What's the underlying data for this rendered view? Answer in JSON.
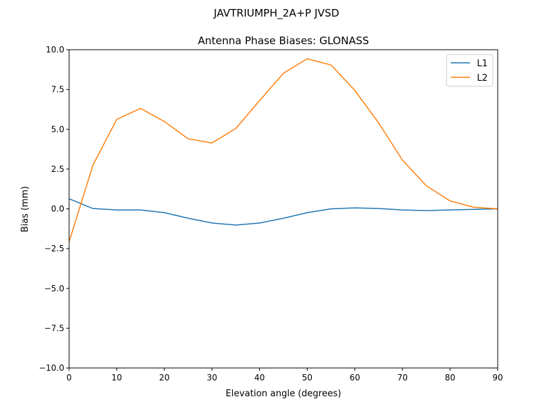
{
  "chart_data": {
    "type": "line",
    "suptitle": "JAVTRIUMPH_2A+P JVSD",
    "title": "Antenna Phase Biases: GLONASS",
    "xlabel": "Elevation angle (degrees)",
    "ylabel": "Bias (mm)",
    "xlim": [
      0,
      90
    ],
    "ylim": [
      -10,
      10
    ],
    "xticks": [
      0,
      10,
      20,
      30,
      40,
      50,
      60,
      70,
      80,
      90
    ],
    "yticks": [
      "−10.0",
      "−7.5",
      "−5.0",
      "−2.5",
      "0.0",
      "2.5",
      "5.0",
      "7.5",
      "10.0"
    ],
    "ytick_values": [
      -10,
      -7.5,
      -5,
      -2.5,
      0,
      2.5,
      5,
      7.5,
      10
    ],
    "grid": false,
    "legend_position": "top-right",
    "x": [
      0,
      5,
      10,
      15,
      20,
      25,
      30,
      35,
      40,
      45,
      50,
      55,
      60,
      65,
      70,
      75,
      80,
      85,
      90
    ],
    "series": [
      {
        "name": "L1",
        "color": "#1f77b4",
        "values": [
          0.63,
          0.02,
          -0.07,
          -0.07,
          -0.24,
          -0.59,
          -0.89,
          -1.02,
          -0.89,
          -0.59,
          -0.24,
          0.0,
          0.06,
          0.02,
          -0.07,
          -0.11,
          -0.07,
          -0.03,
          0.0
        ]
      },
      {
        "name": "L2",
        "color": "#ff7f0e",
        "values": [
          -2.06,
          2.75,
          5.62,
          6.31,
          5.49,
          4.4,
          4.14,
          5.05,
          6.8,
          8.52,
          9.43,
          9.04,
          7.44,
          5.4,
          3.06,
          1.45,
          0.5,
          0.1,
          0.0
        ]
      }
    ]
  }
}
